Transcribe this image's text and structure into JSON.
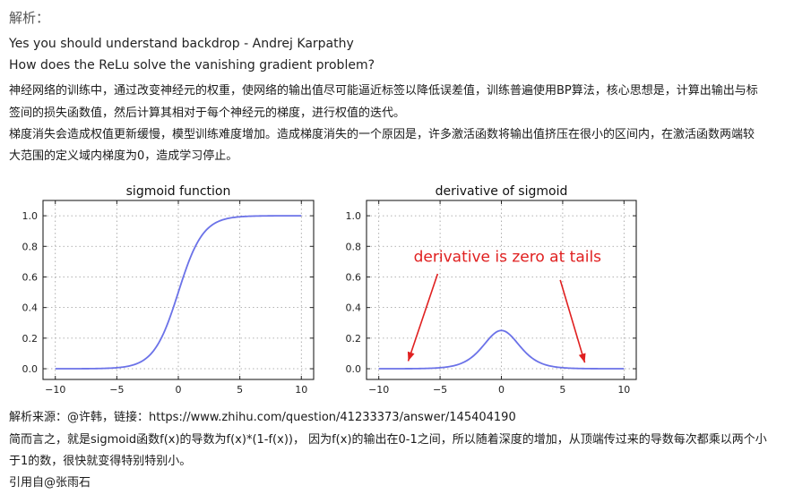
{
  "heading": "解析：",
  "lines": [
    "Yes you should understand backdrop - Andrej Karpathy",
    "How does the ReLu solve the vanishing gradient problem?",
    "神经网络的训练中，通过改变神经元的权重，使网络的输出值尽可能逼近标签以降低误差值，训练普遍使用BP算法，核心思想是，计算出输出与标",
    "签间的损失函数值，然后计算其相对于每个神经元的梯度，进行权值的迭代。",
    "梯度消失会造成权值更新缓慢，模型训练难度增加。造成梯度消失的一个原因是，许多激活函数将输出值挤压在很小的区间内，在激活函数两端较",
    "大范围的定义域内梯度为0，造成学习停止。"
  ],
  "footer_lines": [
    "解析来源：@许韩，链接：https://www.zhihu.com/question/41233373/answer/145404190",
    "简而言之，就是sigmoid函数f(x)的导数为f(x)*(1-f(x))， 因为f(x)的输出在0-1之间，所以随着深度的增加，从顶端传过来的导数每次都乘以两个小",
    "于1的数，很快就变得特别特别小。",
    "引用自@张雨石"
  ],
  "chart_data": [
    {
      "type": "line",
      "title": "sigmoid function",
      "function": "sigmoid",
      "xlim": [
        -11,
        11
      ],
      "ylim": [
        -0.07,
        1.1
      ],
      "xticks": [
        -10,
        -5,
        0,
        5,
        10
      ],
      "yticks": [
        0.0,
        0.2,
        0.4,
        0.6,
        0.8,
        1.0
      ],
      "xtick_labels": [
        "−10",
        "−5",
        "0",
        "5",
        "10"
      ],
      "ytick_labels": [
        "0.0",
        "0.2",
        "0.4",
        "0.6",
        "0.8",
        "1.0"
      ],
      "grid": true,
      "line_color": "#6b72e8",
      "x_range": [
        -10,
        10
      ]
    },
    {
      "type": "line",
      "title": "derivative of sigmoid",
      "function": "sigmoid_derivative",
      "xlim": [
        -11,
        11
      ],
      "ylim": [
        -0.07,
        1.1
      ],
      "xticks": [
        -10,
        -5,
        0,
        5,
        10
      ],
      "yticks": [
        0.0,
        0.2,
        0.4,
        0.6,
        0.8,
        1.0
      ],
      "xtick_labels": [
        "−10",
        "−5",
        "0",
        "5",
        "10"
      ],
      "ytick_labels": [
        "0.0",
        "0.2",
        "0.4",
        "0.6",
        "0.8",
        "1.0"
      ],
      "grid": true,
      "line_color": "#6b72e8",
      "x_range": [
        -10,
        10
      ],
      "annotation": {
        "text": "derivative is zero at tails",
        "color": "#e02020",
        "arrows": [
          {
            "from": [
              -5.2,
              0.62
            ],
            "to": [
              -7.6,
              0.05
            ]
          },
          {
            "from": [
              4.8,
              0.58
            ],
            "to": [
              6.8,
              0.04
            ]
          }
        ],
        "text_pos": [
          0.5,
          0.7
        ]
      }
    }
  ]
}
